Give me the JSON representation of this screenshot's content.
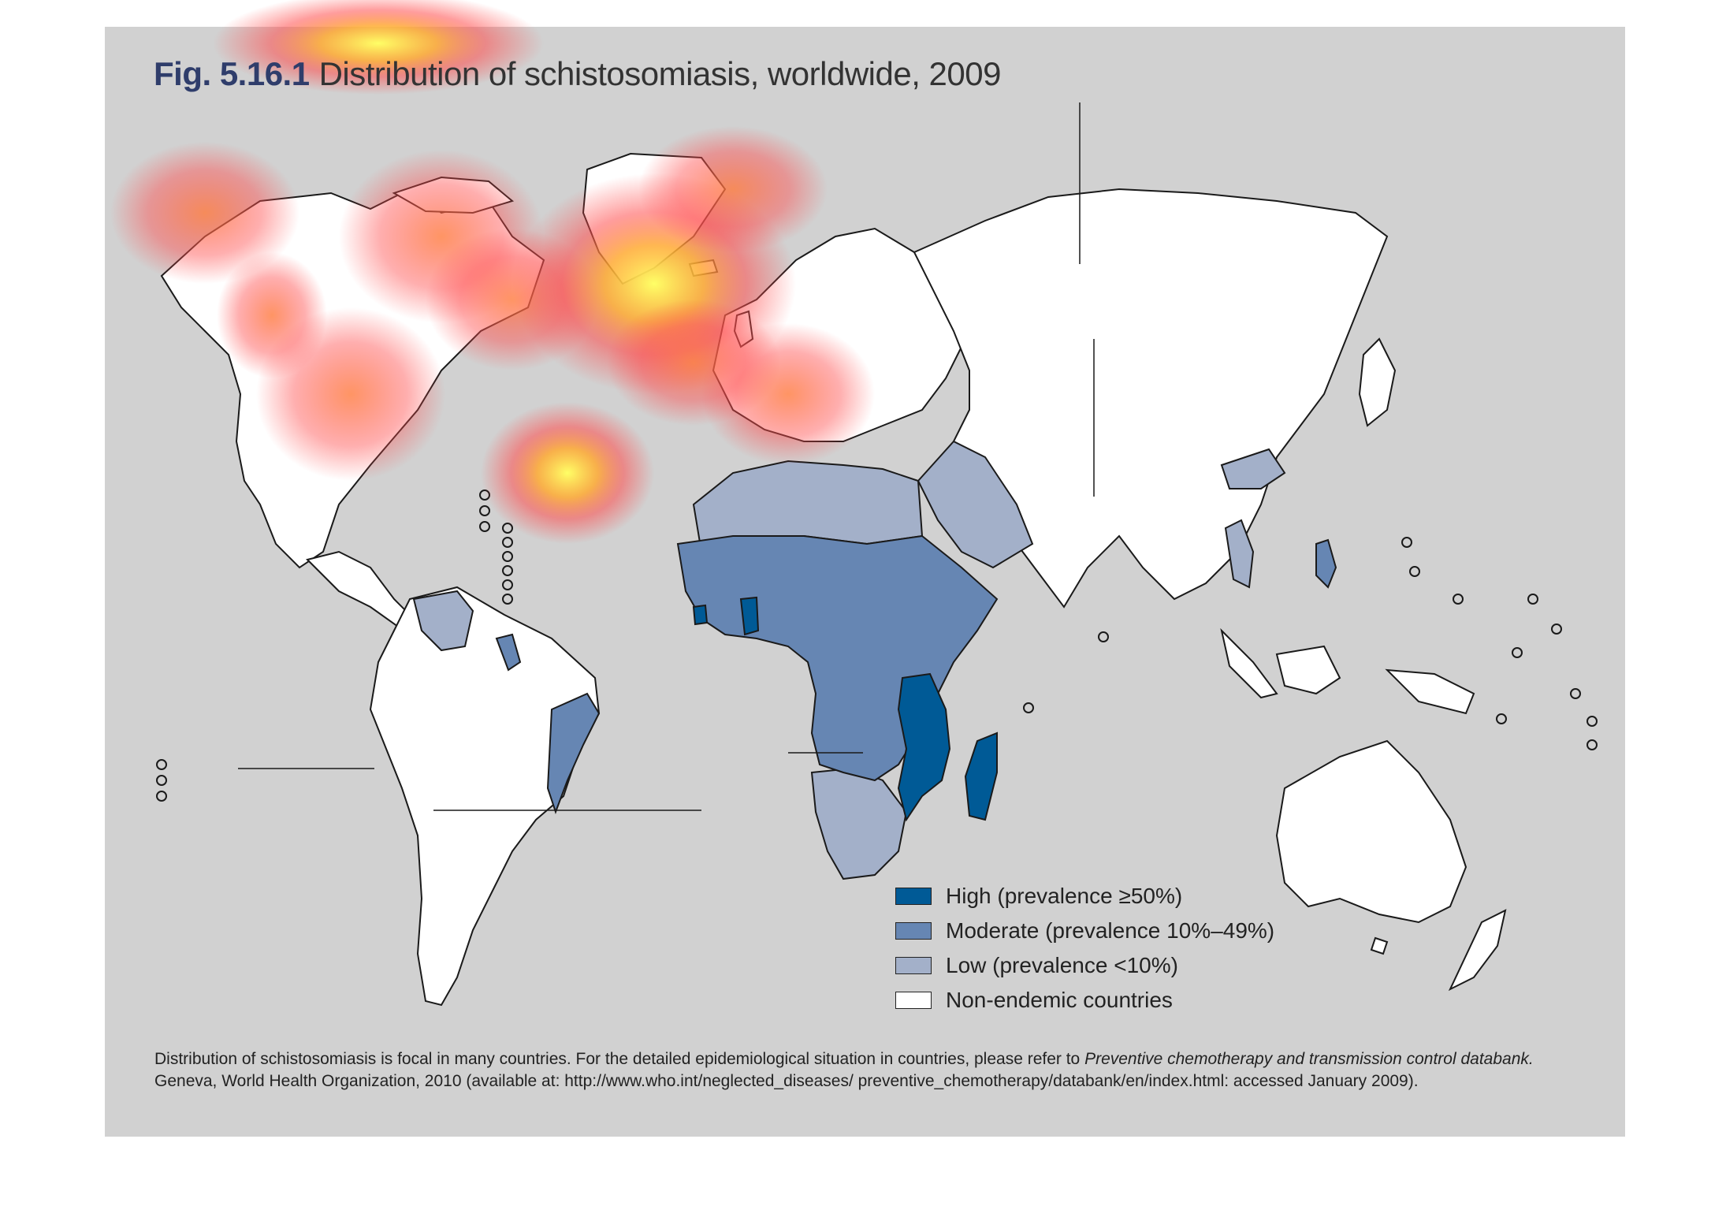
{
  "figure": {
    "number": "Fig. 5.16.1",
    "title": "Distribution of schistosomiasis, worldwide, 2009"
  },
  "legend": [
    {
      "label": "High (prevalence ≥50%)",
      "color": "#005a96"
    },
    {
      "label": "Moderate (prevalence 10%–49%)",
      "color": "#6686b3"
    },
    {
      "label": "Low (prevalence <10%)",
      "color": "#a3b0c9"
    },
    {
      "label": "Non-endemic countries",
      "color": "#ffffff"
    }
  ],
  "note": {
    "line1_text": "Distribution of schistosomiasis is focal in many countries. For the detailed epidemiological situation in countries, please refer to ",
    "line1_italic": "Preventive chemotherapy and transmission control databank.",
    "line2": "Geneva, World Health Organization, 2010 (available at: http://www.who.int/neglected_diseases/ preventive_chemotherapy/databank/en/index.html: accessed January 2009)."
  },
  "colors": {
    "panel_bg": "#d1d1d1",
    "land_outline": "#1a1a1a",
    "heatmap_hot": "#ffff66",
    "heatmap_warm": "#ff4d4d"
  }
}
